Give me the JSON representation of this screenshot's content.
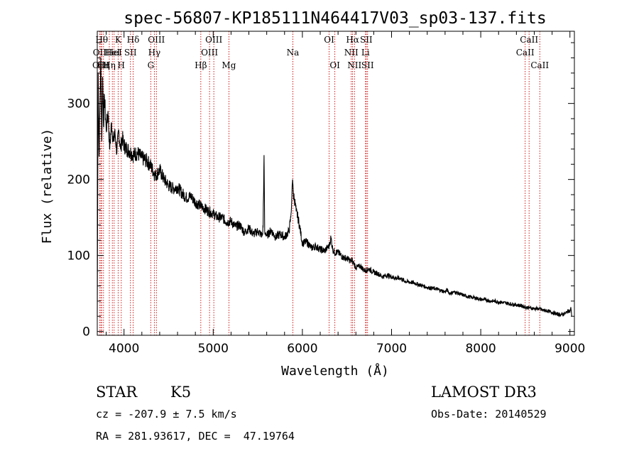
{
  "chart_data": {
    "type": "line",
    "title": "spec-56807-KP185111N464417V03_sp03-137.fits",
    "xlabel": "Wavelength (Å)",
    "ylabel": "Flux (relative)",
    "xlim": [
      3700,
      9050
    ],
    "ylim": [
      -5,
      395
    ],
    "xticks": [
      4000,
      5000,
      6000,
      7000,
      8000,
      9000
    ],
    "yticks": [
      0,
      100,
      200,
      300
    ],
    "series": [
      {
        "name": "flux",
        "x": [
          3700,
          3710,
          3720,
          3730,
          3740,
          3750,
          3760,
          3770,
          3780,
          3800,
          3820,
          3840,
          3860,
          3880,
          3900,
          3920,
          3940,
          3960,
          3980,
          4000,
          4030,
          4060,
          4100,
          4150,
          4200,
          4250,
          4300,
          4350,
          4400,
          4450,
          4500,
          4550,
          4600,
          4650,
          4700,
          4750,
          4800,
          4850,
          4900,
          4950,
          5000,
          5050,
          5100,
          5150,
          5200,
          5250,
          5300,
          5350,
          5400,
          5450,
          5500,
          5550,
          5560,
          5570,
          5577,
          5584,
          5590,
          5600,
          5650,
          5700,
          5750,
          5800,
          5850,
          5870,
          5880,
          5890,
          5895,
          5900,
          5910,
          5930,
          5950,
          5970,
          6000,
          6050,
          6100,
          6150,
          6200,
          6250,
          6280,
          6300,
          6310,
          6320,
          6340,
          6360,
          6400,
          6450,
          6500,
          6550,
          6560,
          6563,
          6570,
          6580,
          6600,
          6650,
          6700,
          6750,
          6800,
          6850,
          6900,
          6950,
          7000,
          7050,
          7100,
          7150,
          7200,
          7250,
          7300,
          7350,
          7400,
          7450,
          7500,
          7550,
          7600,
          7620,
          7650,
          7700,
          7750,
          7800,
          7850,
          7900,
          7950,
          8000,
          8050,
          8100,
          8150,
          8200,
          8250,
          8300,
          8350,
          8400,
          8450,
          8500,
          8550,
          8600,
          8650,
          8700,
          8750,
          8800,
          8850,
          8900,
          8950,
          8990,
          9000,
          9010,
          9020
        ],
        "values": [
          20,
          340,
          230,
          300,
          360,
          250,
          335,
          270,
          310,
          265,
          290,
          240,
          275,
          250,
          260,
          235,
          265,
          240,
          255,
          245,
          240,
          238,
          232,
          235,
          228,
          225,
          218,
          205,
          212,
          200,
          192,
          188,
          190,
          182,
          176,
          178,
          170,
          166,
          162,
          158,
          155,
          150,
          150,
          144,
          145,
          138,
          140,
          130,
          136,
          128,
          132,
          126,
          138,
          232,
          132,
          128,
          130,
          126,
          133,
          124,
          128,
          124,
          132,
          150,
          172,
          200,
          192,
          180,
          175,
          158,
          150,
          138,
          116,
          118,
          110,
          112,
          108,
          106,
          110,
          112,
          118,
          124,
          108,
          104,
          104,
          98,
          96,
          92,
          96,
          88,
          92,
          89,
          84,
          86,
          80,
          82,
          78,
          76,
          72,
          74,
          72,
          70,
          70,
          66,
          65,
          64,
          62,
          60,
          58,
          57,
          56,
          54,
          52,
          55,
          50,
          52,
          50,
          48,
          46,
          45,
          44,
          42,
          42,
          40,
          40,
          39,
          38,
          37,
          36,
          35,
          34,
          32,
          31,
          30,
          30,
          28,
          27,
          25,
          23,
          22,
          24,
          28,
          25,
          32,
          20
        ]
      }
    ],
    "line_markers": [
      {
        "wavelength": 3727,
        "label": "OII",
        "tier": 1
      },
      {
        "wavelength": 3740,
        "label": "OIII",
        "tier": 2
      },
      {
        "wavelength": 3750,
        "label": "Hθ",
        "tier": 0
      },
      {
        "wavelength": 3770,
        "label": "Hη",
        "tier": 2
      },
      {
        "wavelength": 3835,
        "label": "Hη",
        "tier": 2
      },
      {
        "wavelength": 3869,
        "label": "HeI",
        "tier": 1
      },
      {
        "wavelength": 3889,
        "label": "HeI",
        "tier": 1
      },
      {
        "wavelength": 3934,
        "label": "K",
        "tier": 0
      },
      {
        "wavelength": 3969,
        "label": "H",
        "tier": 2
      },
      {
        "wavelength": 4072,
        "label": "SII",
        "tier": 1
      },
      {
        "wavelength": 4102,
        "label": "Hδ",
        "tier": 0
      },
      {
        "wavelength": 4300,
        "label": "G",
        "tier": 2
      },
      {
        "wavelength": 4340,
        "label": "Hγ",
        "tier": 1
      },
      {
        "wavelength": 4363,
        "label": "OIII",
        "tier": 0
      },
      {
        "wavelength": 4861,
        "label": "Hβ",
        "tier": 2
      },
      {
        "wavelength": 4959,
        "label": "OIII",
        "tier": 1
      },
      {
        "wavelength": 5007,
        "label": "OIII",
        "tier": 0
      },
      {
        "wavelength": 5176,
        "label": "Mg",
        "tier": 2
      },
      {
        "wavelength": 5893,
        "label": "Na",
        "tier": 1
      },
      {
        "wavelength": 6300,
        "label": "OI",
        "tier": 0
      },
      {
        "wavelength": 6364,
        "label": "OI",
        "tier": 2
      },
      {
        "wavelength": 6548,
        "label": "NII",
        "tier": 1
      },
      {
        "wavelength": 6563,
        "label": "Hα",
        "tier": 0
      },
      {
        "wavelength": 6584,
        "label": "NII",
        "tier": 2
      },
      {
        "wavelength": 6708,
        "label": "Li",
        "tier": 1
      },
      {
        "wavelength": 6716,
        "label": "SII",
        "tier": 0
      },
      {
        "wavelength": 6731,
        "label": "SII",
        "tier": 2
      },
      {
        "wavelength": 8498,
        "label": "CaII",
        "tier": 1
      },
      {
        "wavelength": 8542,
        "label": "CaII",
        "tier": 0
      },
      {
        "wavelength": 8662,
        "label": "CaII",
        "tier": 2
      }
    ]
  },
  "info": {
    "object_class": "STAR",
    "subclass": "K5",
    "survey": "LAMOST DR3",
    "redshift": "cz = -207.9 ± 7.5 km/s",
    "obs_date": "Obs-Date: 20140529",
    "coords": "RA = 281.93617, DEC =  47.19764"
  },
  "colors": {
    "spectrum": "#000000",
    "marker_line": "#cc0000",
    "axes": "#000000",
    "background": "#ffffff"
  }
}
